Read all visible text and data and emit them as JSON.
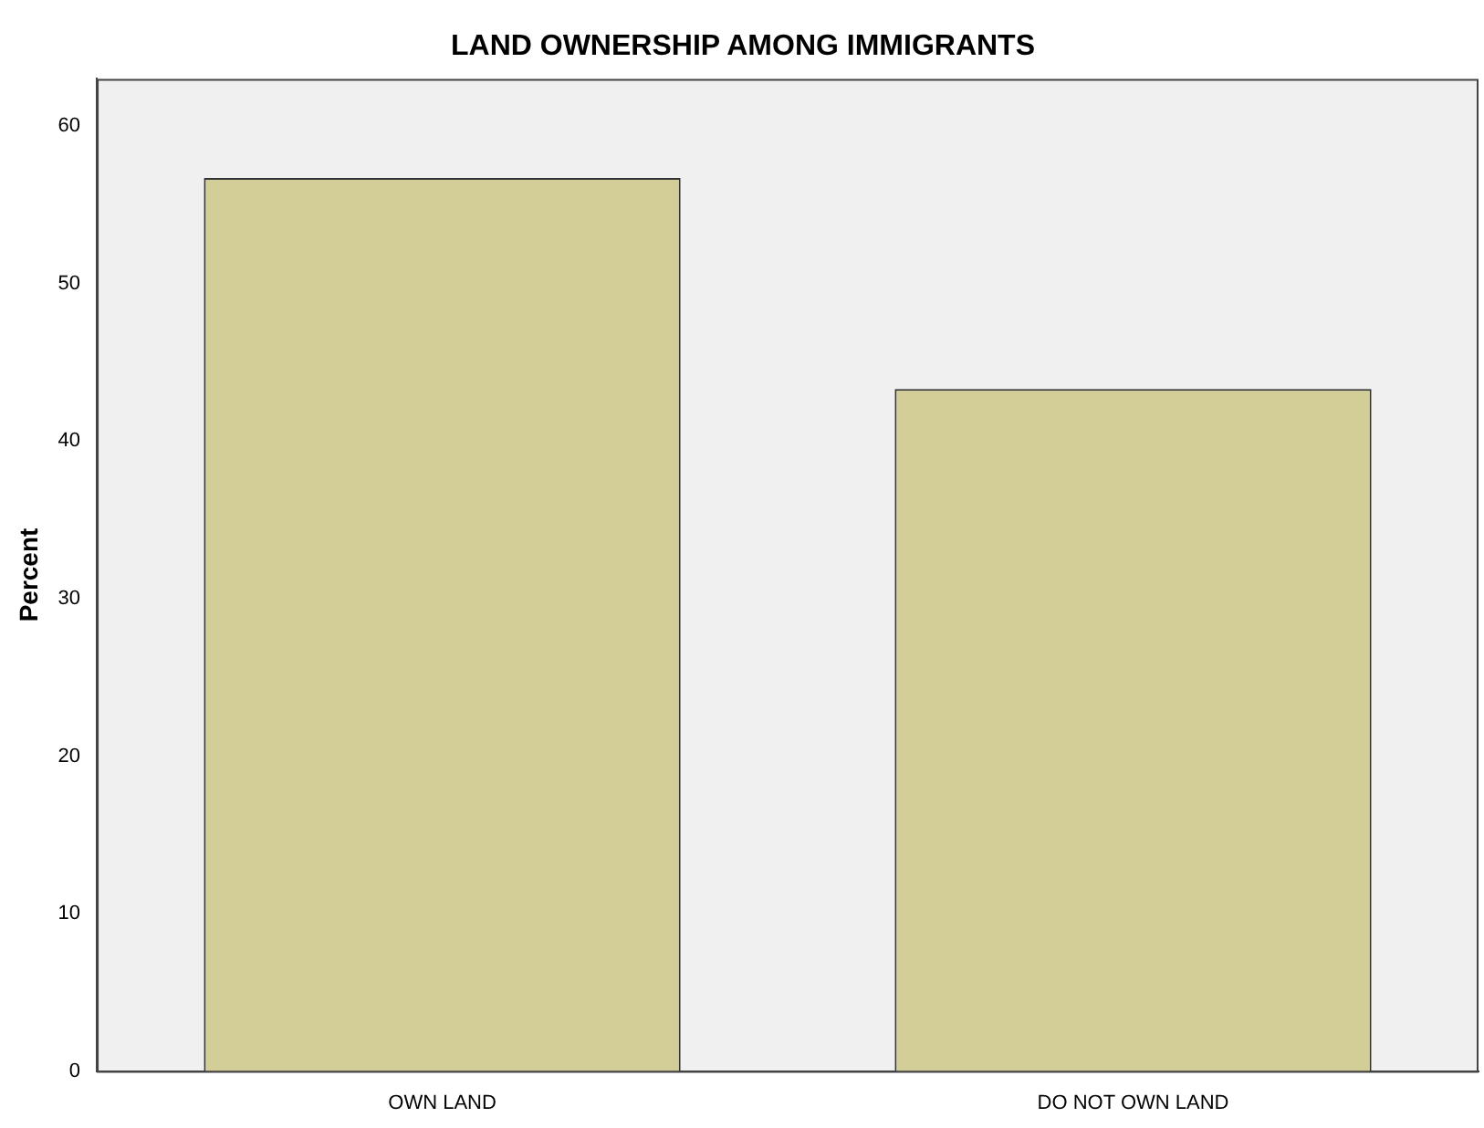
{
  "chart_data": {
    "type": "bar",
    "title": "LAND OWNERSHIP AMONG IMMIGRANTS",
    "ylabel": "Percent",
    "categories": [
      "OWN LAND",
      "DO NOT OWN LAND"
    ],
    "values": [
      56.7,
      43.3
    ],
    "color": "#d3ce97",
    "ylim": [
      0,
      63
    ],
    "yticks": [
      0,
      10,
      20,
      30,
      40,
      50,
      60
    ],
    "grid": false,
    "legend": false
  }
}
